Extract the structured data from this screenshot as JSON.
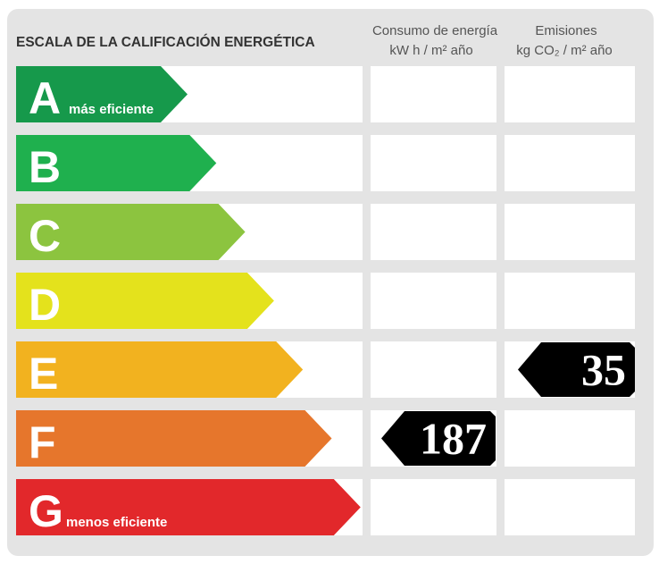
{
  "header": {
    "title": "ESCALA DE LA CALIFICACIÓN ENERGÉTICA",
    "consumption": {
      "title": "Consumo de energía",
      "unit": "kW h  / m² año"
    },
    "emissions": {
      "title": "Emisiones",
      "unit": "kg CO₂  / m² año"
    }
  },
  "rows": [
    {
      "letter": "A",
      "note": "más eficiente",
      "color": "#16994b"
    },
    {
      "letter": "B",
      "color": "#1fb04e"
    },
    {
      "letter": "C",
      "color": "#8cc43f"
    },
    {
      "letter": "D",
      "color": "#e4e21c"
    },
    {
      "letter": "E",
      "color": "#f2b21f",
      "emissions": 35
    },
    {
      "letter": "F",
      "color": "#e6762c",
      "consumption": 187
    },
    {
      "letter": "G",
      "note": "menos eficiente",
      "color": "#e2282b"
    }
  ]
}
